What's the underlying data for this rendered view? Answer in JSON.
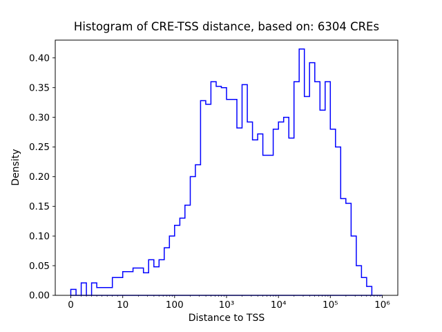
{
  "chart_data": {
    "type": "histogram",
    "histtype": "step",
    "title": "Histogram of CRE-TSS distance, based on: 6304 CREs",
    "xlabel": "Distance to TSS",
    "ylabel": "Density",
    "sample_size": 6304,
    "x_scale": "symlog",
    "x_linthresh": 10,
    "line_color": "#0000ff",
    "axis_color": "#000000",
    "background_color": "#ffffff",
    "grid": false,
    "xlim_symlog_units": [
      -0.3,
      6.3
    ],
    "ylim": [
      0,
      0.43
    ],
    "x_ticks": [
      {
        "value": 0,
        "label": "0"
      },
      {
        "value": 10,
        "label": "10"
      },
      {
        "value": 100,
        "label": "100"
      },
      {
        "value": 1000,
        "label": "10³"
      },
      {
        "value": 10000,
        "label": "10⁴"
      },
      {
        "value": 100000,
        "label": "10⁵"
      },
      {
        "value": 1000000,
        "label": "10⁶"
      }
    ],
    "y_ticks": [
      0.0,
      0.05,
      0.1,
      0.15,
      0.2,
      0.25,
      0.3,
      0.35,
      0.4
    ],
    "y_tick_labels": [
      "0.00",
      "0.05",
      "0.10",
      "0.15",
      "0.20",
      "0.25",
      "0.30",
      "0.35",
      "0.40"
    ],
    "bin_edges": [
      0,
      1,
      2,
      3,
      4,
      5,
      6,
      7,
      8,
      9,
      10,
      12.6,
      15.8,
      20,
      25.1,
      31.6,
      39.8,
      50.1,
      63.1,
      79.4,
      100,
      126,
      158,
      200,
      251,
      316,
      398,
      501,
      631,
      794,
      1000,
      1259,
      1585,
      1995,
      2512,
      3162,
      3981,
      5012,
      6310,
      7943,
      10000,
      12589,
      15849,
      19953,
      25119,
      31623,
      39811,
      50119,
      63096,
      79433,
      100000,
      125893,
      158489,
      199526,
      251189,
      316228,
      398107,
      501187,
      630957,
      1000000
    ],
    "densities": [
      0.01,
      0.0,
      0.021,
      0.0,
      0.021,
      0.013,
      0.013,
      0.013,
      0.03,
      0.03,
      0.04,
      0.04,
      0.046,
      0.046,
      0.038,
      0.06,
      0.048,
      0.06,
      0.08,
      0.1,
      0.118,
      0.13,
      0.152,
      0.2,
      0.22,
      0.328,
      0.322,
      0.36,
      0.352,
      0.35,
      0.33,
      0.33,
      0.282,
      0.355,
      0.292,
      0.262,
      0.272,
      0.236,
      0.236,
      0.28,
      0.292,
      0.3,
      0.265,
      0.36,
      0.415,
      0.335,
      0.392,
      0.36,
      0.312,
      0.36,
      0.28,
      0.25,
      0.163,
      0.155,
      0.1,
      0.05,
      0.03,
      0.015,
      0.0
    ]
  }
}
